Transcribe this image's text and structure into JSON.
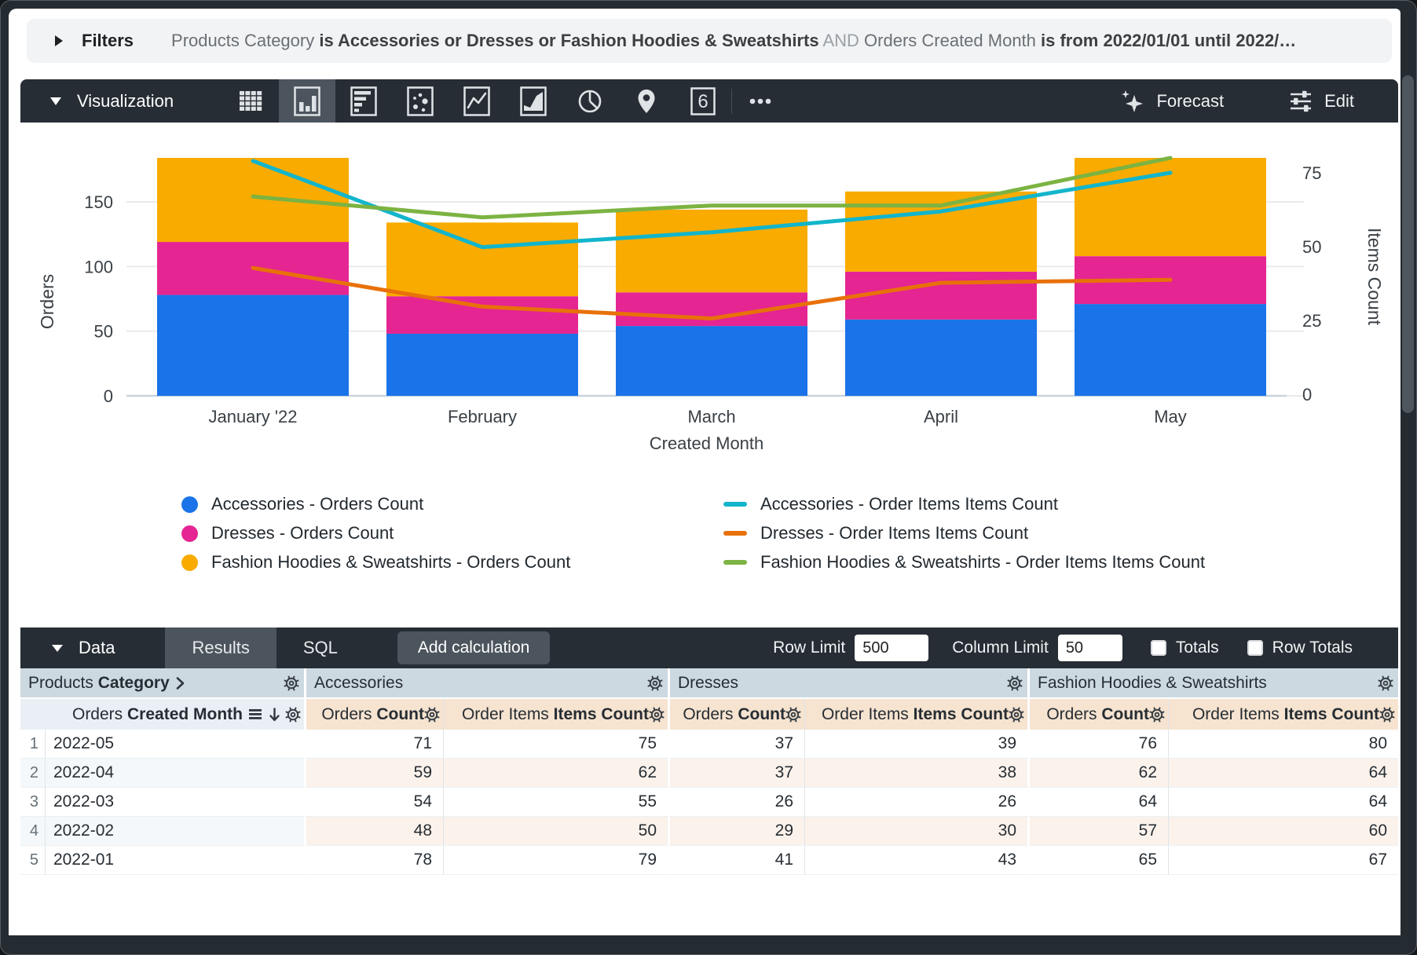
{
  "filters": {
    "title": "Filters",
    "segments": [
      {
        "text": "Products Category ",
        "style": "field"
      },
      {
        "text": "is Accessories or Dresses or Fashion Hoodies & Sweatshirts",
        "style": "strong"
      },
      {
        "text": " AND ",
        "style": "conj"
      },
      {
        "text": "Orders Created Month ",
        "style": "field"
      },
      {
        "text": "is from 2022/01/01 until 2022/…",
        "style": "strong"
      }
    ]
  },
  "viz": {
    "title": "Visualization",
    "icons": [
      {
        "id": "table",
        "selected": false
      },
      {
        "id": "column",
        "selected": true
      },
      {
        "id": "bar",
        "selected": false
      },
      {
        "id": "scatter",
        "selected": false
      },
      {
        "id": "line",
        "selected": false
      },
      {
        "id": "area",
        "selected": false
      },
      {
        "id": "pie",
        "selected": false
      },
      {
        "id": "map",
        "selected": false
      },
      {
        "id": "single-value",
        "selected": false,
        "glyph": "6"
      },
      {
        "id": "more",
        "selected": false
      }
    ],
    "forecast_label": "Forecast",
    "edit_label": "Edit"
  },
  "chart_data": {
    "type": "combo-stacked-bar-line",
    "categories": [
      "January '22",
      "February",
      "March",
      "April",
      "May"
    ],
    "x_axis_label": "Created Month",
    "left_axis": {
      "title": "Orders",
      "ticks": [
        0,
        50,
        100,
        150
      ]
    },
    "right_axis": {
      "title": "Items Count",
      "ticks": [
        0,
        25,
        50,
        75
      ]
    },
    "bar_series": [
      {
        "name": "Accessories - Orders Count",
        "color": "#1A73E8",
        "values": [
          78,
          48,
          54,
          59,
          71
        ]
      },
      {
        "name": "Dresses - Orders Count",
        "color": "#E52592",
        "values": [
          41,
          29,
          26,
          37,
          37
        ]
      },
      {
        "name": "Fashion Hoodies & Sweatshirts - Orders Count",
        "color": "#F9AB00",
        "values": [
          65,
          57,
          64,
          62,
          76
        ]
      }
    ],
    "line_series": [
      {
        "name": "Accessories - Order Items Items Count",
        "color": "#12B5CB",
        "values": [
          79,
          50,
          55,
          62,
          75
        ]
      },
      {
        "name": "Dresses - Order Items Items Count",
        "color": "#E8710A",
        "values": [
          43,
          30,
          26,
          38,
          39
        ]
      },
      {
        "name": "Fashion Hoodies & Sweatshirts - Order Items Items Count",
        "color": "#7CB342",
        "values": [
          67,
          60,
          64,
          64,
          80
        ]
      }
    ]
  },
  "data_bar": {
    "title": "Data",
    "tabs": [
      {
        "label": "Results",
        "active": true
      },
      {
        "label": "SQL",
        "active": false
      }
    ],
    "add_calculation_label": "Add calculation",
    "row_limit_label": "Row Limit",
    "row_limit_value": "500",
    "column_limit_label": "Column Limit",
    "column_limit_value": "50",
    "totals_label": "Totals",
    "row_totals_label": "Row Totals"
  },
  "table": {
    "dimension_group_header": {
      "normal": "Products",
      "bold": "Category"
    },
    "dimension_header": {
      "normal": "Orders",
      "bold": "Created Month"
    },
    "groups": [
      {
        "label": "Accessories"
      },
      {
        "label": "Dresses"
      },
      {
        "label": "Fashion Hoodies & Sweatshirts"
      }
    ],
    "measure_headers": [
      {
        "normal": "Orders",
        "bold": "Count"
      },
      {
        "normal": "Order Items",
        "bold": "Items Count"
      }
    ],
    "rows": [
      {
        "index": "1",
        "dimension": "2022-05",
        "values": [
          "71",
          "75",
          "37",
          "39",
          "76",
          "80"
        ]
      },
      {
        "index": "2",
        "dimension": "2022-04",
        "values": [
          "59",
          "62",
          "37",
          "38",
          "62",
          "64"
        ]
      },
      {
        "index": "3",
        "dimension": "2022-03",
        "values": [
          "54",
          "55",
          "26",
          "26",
          "64",
          "64"
        ]
      },
      {
        "index": "4",
        "dimension": "2022-02",
        "values": [
          "48",
          "50",
          "29",
          "30",
          "57",
          "60"
        ]
      },
      {
        "index": "5",
        "dimension": "2022-01",
        "values": [
          "78",
          "79",
          "41",
          "43",
          "65",
          "67"
        ]
      }
    ]
  }
}
